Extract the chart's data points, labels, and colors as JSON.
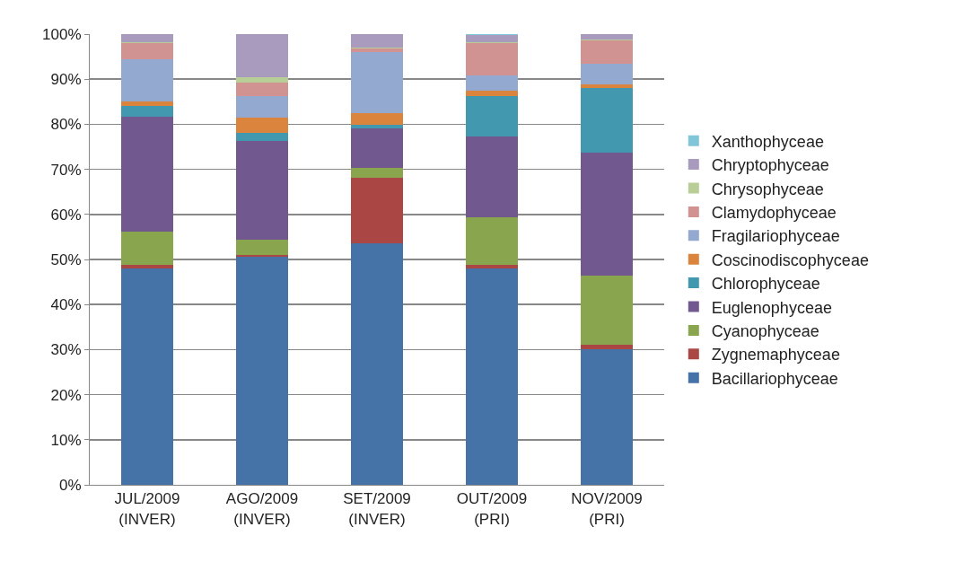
{
  "chart_data": {
    "type": "bar",
    "stacked": true,
    "categories": [
      "JUL/2009\n(INVER)",
      "AGO/2009\n(INVER)",
      "SET/2009\n(INVER)",
      "OUT/2009\n(PRI)",
      "NOV/2009\n(PRI)"
    ],
    "series": [
      {
        "name": "Bacillariophyceae",
        "color": "#4572a7",
        "values": [
          48.0,
          50.6,
          53.6,
          48.0,
          30.1
        ]
      },
      {
        "name": "Zygnemaphyceae",
        "color": "#aa4643",
        "values": [
          0.8,
          0.4,
          14.5,
          0.8,
          1.0
        ]
      },
      {
        "name": "Cyanophyceae",
        "color": "#89a54e",
        "values": [
          7.4,
          3.4,
          2.2,
          10.5,
          15.4
        ]
      },
      {
        "name": "Euglenophyceae",
        "color": "#71588f",
        "values": [
          25.5,
          21.9,
          8.7,
          17.9,
          27.2
        ]
      },
      {
        "name": "Chlorophyceae",
        "color": "#4198af",
        "values": [
          2.3,
          1.8,
          0.8,
          9.0,
          14.3
        ]
      },
      {
        "name": "Coscinodiscophyceae",
        "color": "#db843d",
        "values": [
          1.1,
          3.4,
          2.6,
          1.2,
          0.8
        ]
      },
      {
        "name": "Fragilariophyceae",
        "color": "#93a9cf",
        "values": [
          9.4,
          4.8,
          13.7,
          3.5,
          4.7
        ]
      },
      {
        "name": "Clamydophyceae",
        "color": "#d19392",
        "values": [
          3.6,
          2.9,
          0.8,
          7.2,
          5.1
        ]
      },
      {
        "name": "Chrysophyceae",
        "color": "#b9cd96",
        "values": [
          0.2,
          1.3,
          0.2,
          0.2,
          0.2
        ]
      },
      {
        "name": "Chryptophyceae",
        "color": "#a99bbd",
        "values": [
          1.7,
          9.5,
          2.9,
          1.5,
          1.2
        ]
      },
      {
        "name": "Xanthophyceae",
        "color": "#80c5d8",
        "values": [
          0,
          0,
          0,
          0.2,
          0
        ]
      }
    ],
    "ylim": [
      0,
      100
    ],
    "yticks": [
      {
        "value": 0,
        "label": "0%"
      },
      {
        "value": 10,
        "label": "10%"
      },
      {
        "value": 20,
        "label": "20%"
      },
      {
        "value": 30,
        "label": "30%"
      },
      {
        "value": 40,
        "label": "40%"
      },
      {
        "value": 50,
        "label": "50%"
      },
      {
        "value": 60,
        "label": "60%"
      },
      {
        "value": 70,
        "label": "70%"
      },
      {
        "value": 80,
        "label": "80%"
      },
      {
        "value": 90,
        "label": "90%"
      },
      {
        "value": 100,
        "label": "100%"
      }
    ],
    "grid": "y",
    "legend": "right"
  }
}
